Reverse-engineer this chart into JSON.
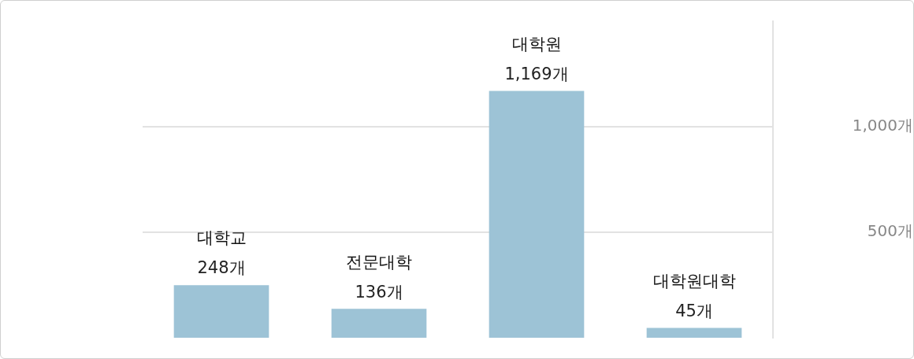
{
  "chart_data": {
    "type": "bar",
    "categories": [
      "대학교",
      "전문대학",
      "대학원",
      "대학원대학"
    ],
    "values": [
      248,
      136,
      1169,
      45
    ],
    "value_labels": [
      "248개",
      "136개",
      "1,169개",
      "45개"
    ],
    "color": "#9dc3d6",
    "ylim": [
      0,
      1500
    ],
    "yticks": [
      {
        "value": 500,
        "label": "500개"
      },
      {
        "value": 1000,
        "label": "1,000개"
      }
    ],
    "grid": "y",
    "tick_labels": "y"
  }
}
